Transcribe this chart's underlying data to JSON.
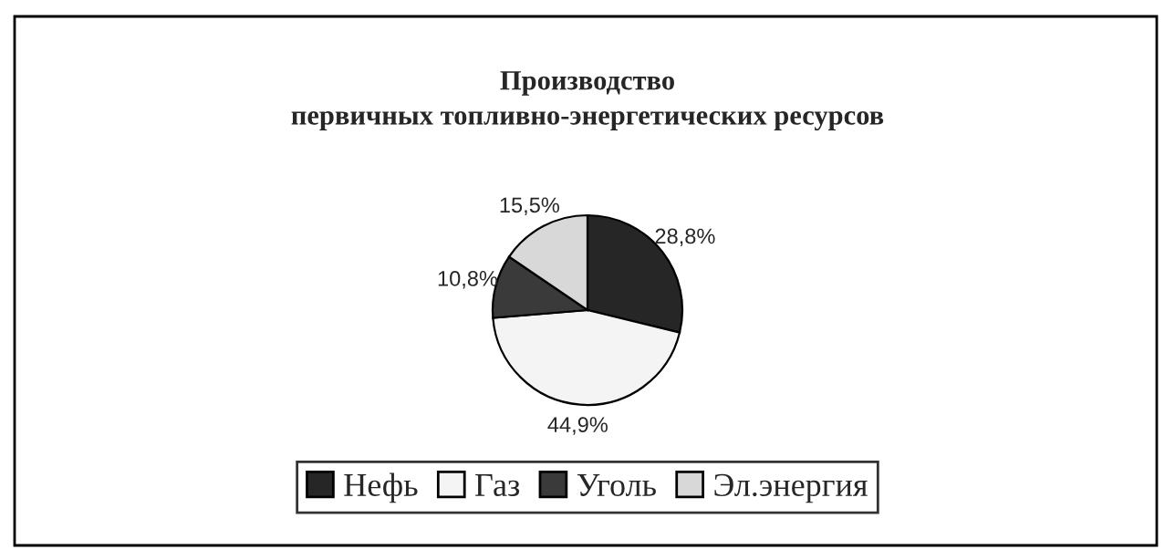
{
  "chart_data": {
    "type": "pie",
    "title": "Производство\nпервичных топливно-энергетических ресурсов",
    "categories": [
      "Нефь",
      "Газ",
      "Уголь",
      "Эл.энергия"
    ],
    "values": [
      28.8,
      44.9,
      10.8,
      15.5
    ],
    "value_labels": [
      "28,8%",
      "44,9%",
      "10,8%",
      "15,5%"
    ],
    "colors": [
      "#262626",
      "#f4f4f4",
      "#3a3a3a",
      "#d8d8d8"
    ],
    "legend": "bottom"
  }
}
